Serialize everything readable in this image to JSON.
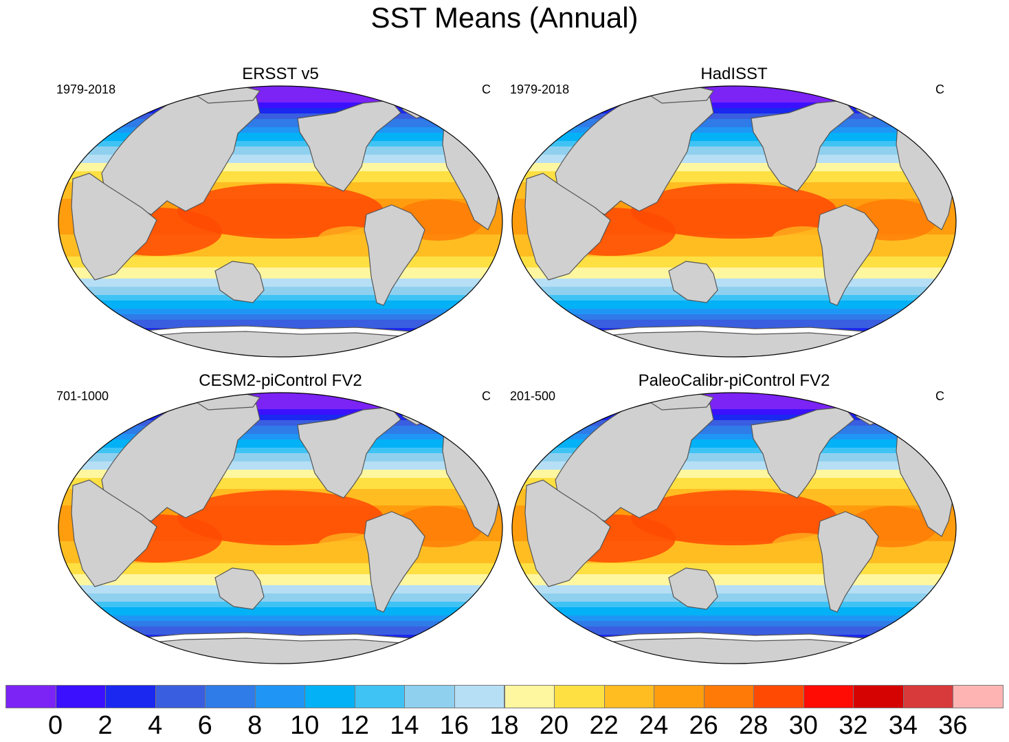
{
  "title": "SST Means (Annual)",
  "panels": [
    {
      "title": "ERSST v5",
      "period": "1979-2018",
      "unit": "C"
    },
    {
      "title": "HadISST",
      "period": "1979-2018",
      "unit": "C"
    },
    {
      "title": "CESM2-piControl FV2",
      "period": "701-1000",
      "unit": "C"
    },
    {
      "title": "PaleoCalibr-piControl FV2",
      "period": "201-500",
      "unit": "C"
    }
  ],
  "colorbar": {
    "labels": [
      "0",
      "2",
      "4",
      "6",
      "8",
      "10",
      "12",
      "14",
      "16",
      "18",
      "20",
      "22",
      "24",
      "26",
      "28",
      "30",
      "32",
      "34",
      "36"
    ],
    "colors": [
      "#7b24f5",
      "#3b10ff",
      "#1a28f0",
      "#3a5ee0",
      "#2f7be8",
      "#1f96f5",
      "#03b1f6",
      "#3fc3f5",
      "#8fd0ef",
      "#b6dff5",
      "#fff6a0",
      "#ffe043",
      "#ffbd22",
      "#ff9d0e",
      "#ff7a06",
      "#ff4a04",
      "#ff0c04",
      "#d60303",
      "#d8393a",
      "#ffb4b4"
    ]
  }
}
